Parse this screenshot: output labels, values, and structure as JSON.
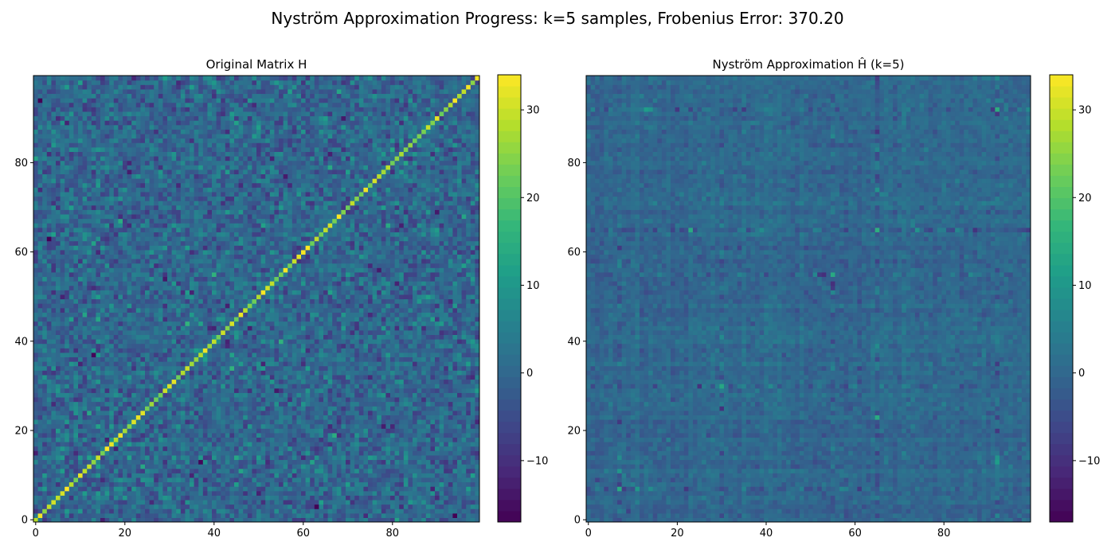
{
  "figure": {
    "suptitle": "Nyström Approximation Progress: k=5 samples, Frobenius Error: 370.20"
  },
  "chart_data": [
    {
      "type": "heatmap",
      "title": "Original Matrix H",
      "xlabel": "",
      "ylabel": "",
      "rows": 100,
      "cols": 100,
      "xlim": [
        0,
        99
      ],
      "ylim": [
        0,
        99
      ],
      "xticks": [
        0,
        20,
        40,
        60,
        80
      ],
      "yticks": [
        0,
        20,
        40,
        60,
        80
      ],
      "colormap": "viridis",
      "origin": "lower",
      "grid": false,
      "values_description": "random values roughly -12 to 12 with a strong main diagonal near 20 to 34",
      "colorbar": {
        "range": [
          -17,
          34
        ],
        "ticks": [
          -10,
          0,
          10,
          20,
          30
        ],
        "tick_labels": [
          "−10",
          "0",
          "10",
          "20",
          "30"
        ]
      }
    },
    {
      "type": "heatmap",
      "title": "Nyström Approximation Ĥ (k=5)",
      "xlabel": "",
      "ylabel": "",
      "rows": 100,
      "cols": 100,
      "xlim": [
        0,
        99
      ],
      "ylim": [
        0,
        99
      ],
      "xticks": [
        0,
        20,
        40,
        60,
        80
      ],
      "yticks": [
        0,
        20,
        40,
        60,
        80
      ],
      "colormap": "viridis",
      "origin": "lower",
      "grid": false,
      "values_description": "low-rank approximation, mostly -5 to 5 with brighter streaks along sampled rows/columns",
      "colorbar": {
        "range": [
          -17,
          34
        ],
        "ticks": [
          -10,
          0,
          10,
          20,
          30
        ],
        "tick_labels": [
          "−10",
          "0",
          "10",
          "20",
          "30"
        ]
      }
    }
  ],
  "colors": {
    "viridis": [
      "#440154",
      "#482878",
      "#3e4989",
      "#31688e",
      "#26828e",
      "#1f9e89",
      "#35b779",
      "#6ece58",
      "#b5de2b",
      "#fde725"
    ]
  }
}
